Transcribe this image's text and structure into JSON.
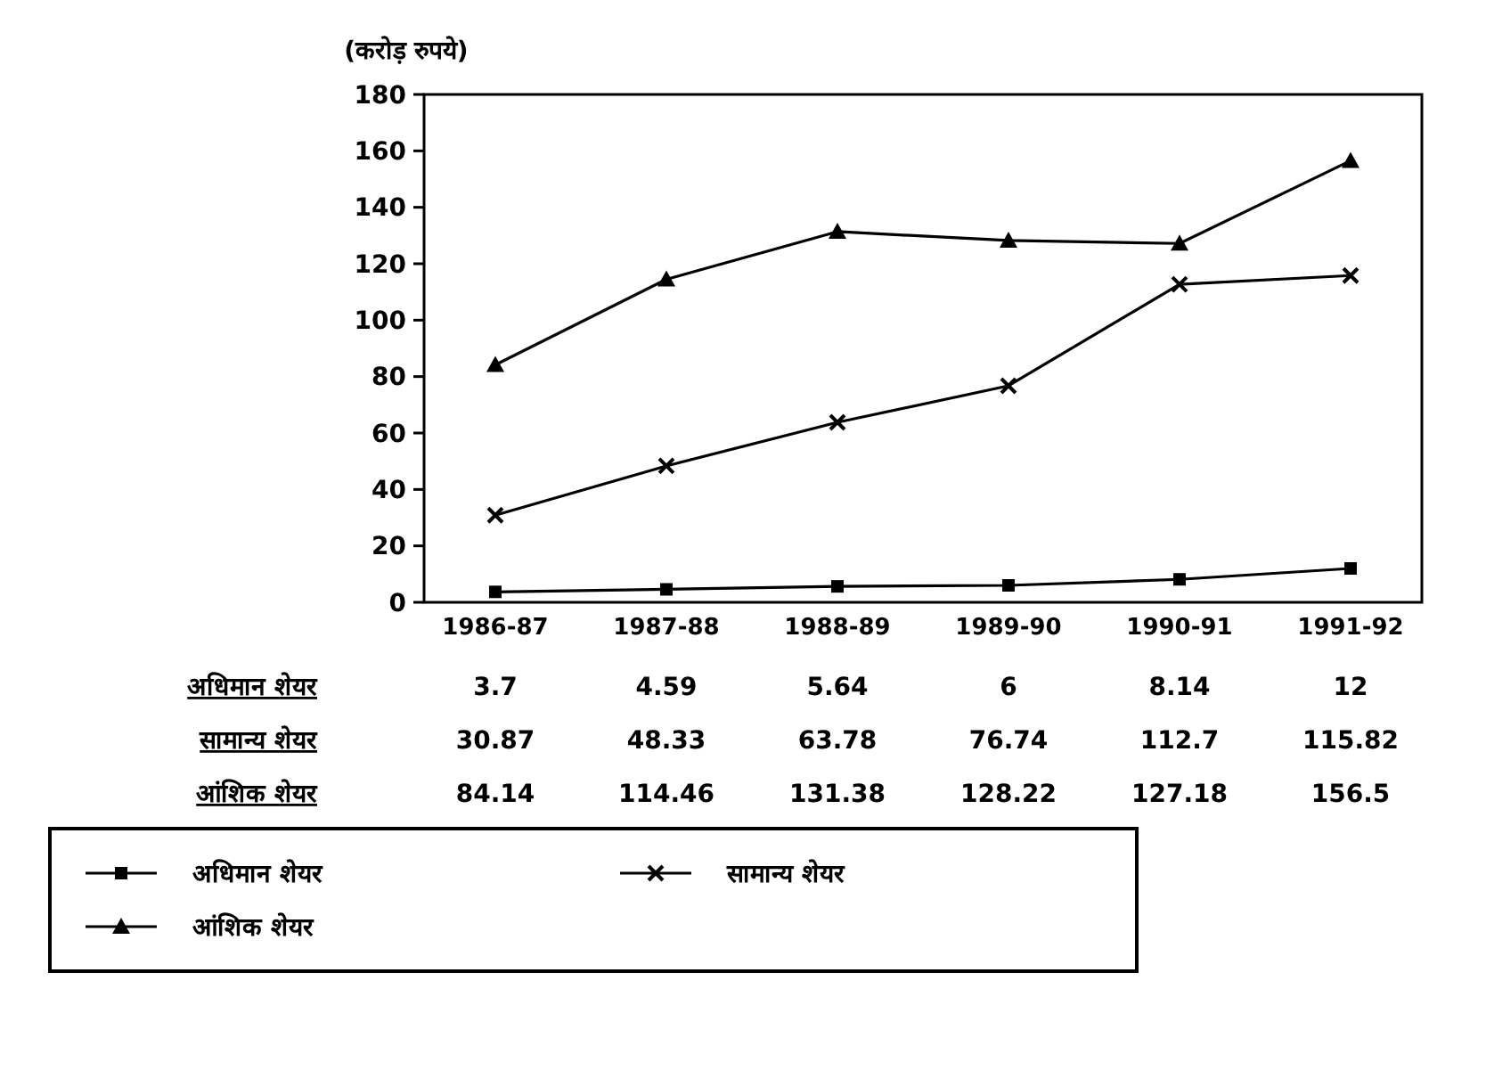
{
  "chart_data": {
    "type": "line",
    "ylabel": "(करोड़ रुपये)",
    "categories": [
      "1986-87",
      "1987-88",
      "1988-89",
      "1989-90",
      "1990-91",
      "1991-92"
    ],
    "ylim": [
      0,
      180
    ],
    "yticks": [
      0,
      20,
      40,
      60,
      80,
      100,
      120,
      140,
      160,
      180
    ],
    "grid": false,
    "legend": "bottom",
    "data_labels": true,
    "series": [
      {
        "name": "अधिमान शेयर",
        "color": "#000000",
        "marker": "square",
        "values": [
          3.7,
          4.59,
          5.64,
          6,
          8.14,
          12
        ]
      },
      {
        "name": "सामान्य शेयर",
        "color": "#000000",
        "marker": "cross",
        "values": [
          30.87,
          48.33,
          63.78,
          76.74,
          112.7,
          115.82
        ]
      },
      {
        "name": "आंशिक शेयर",
        "color": "#000000",
        "marker": "triangle",
        "values": [
          84.14,
          114.46,
          131.38,
          128.22,
          127.18,
          156.5
        ]
      }
    ]
  }
}
